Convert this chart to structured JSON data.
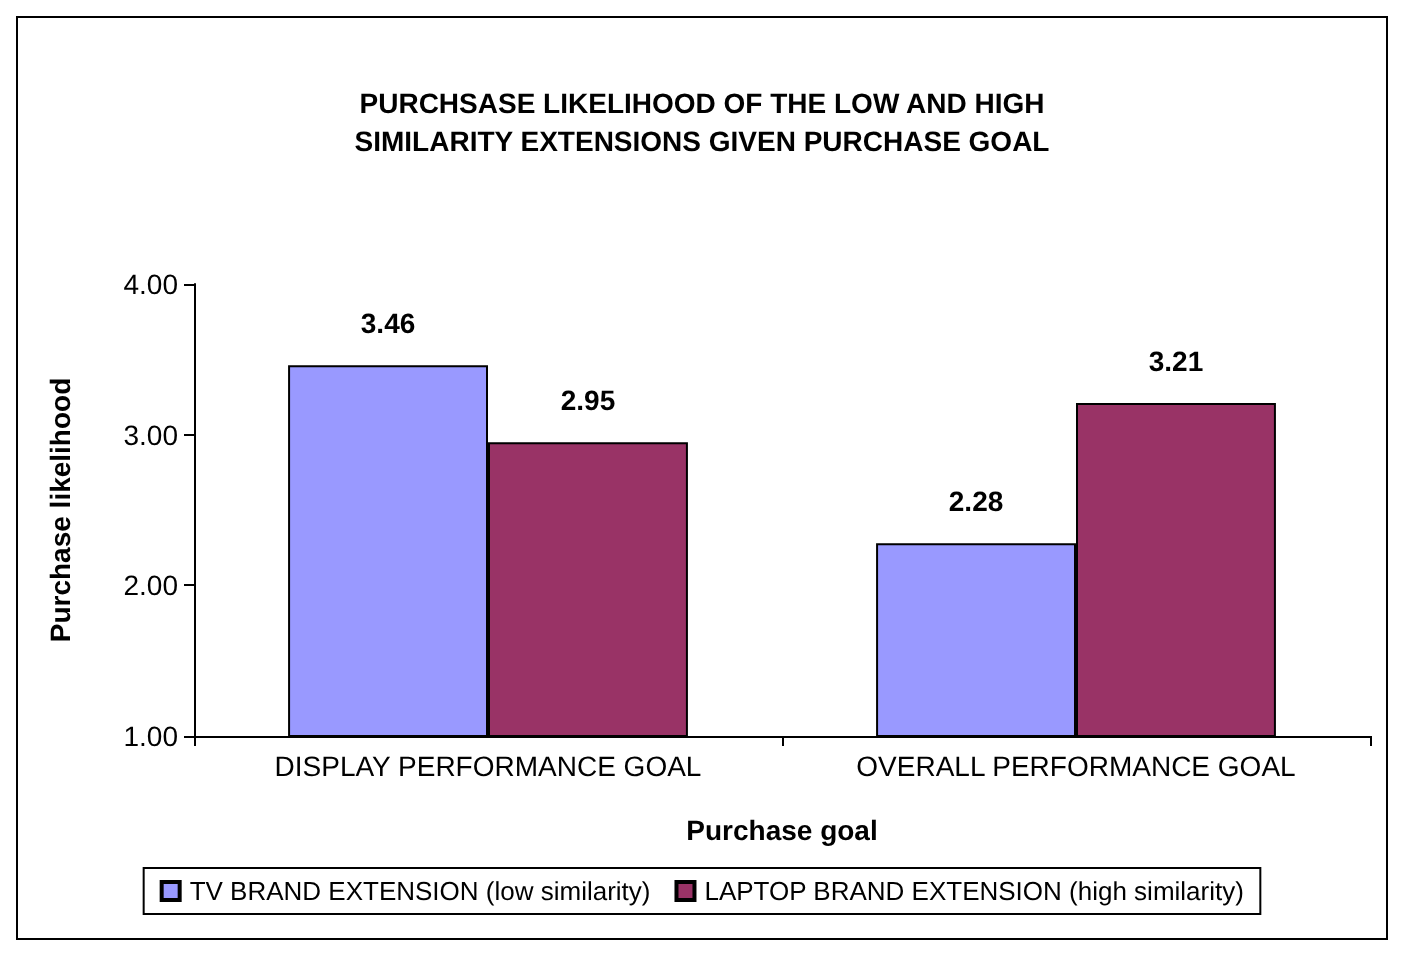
{
  "chart_data": {
    "type": "bar",
    "title": "PURCHSASE LIKELIHOOD OF THE LOW AND HIGH\nSIMILARITY EXTENSIONS GIVEN PURCHASE GOAL",
    "xlabel": "Purchase goal",
    "ylabel": "Purchase likelihood",
    "categories": [
      "DISPLAY PERFORMANCE GOAL",
      "OVERALL PERFORMANCE GOAL"
    ],
    "series": [
      {
        "name": "TV BRAND EXTENSION (low similarity)",
        "color": "#9999ff",
        "values": [
          3.46,
          2.28
        ]
      },
      {
        "name": "LAPTOP BRAND EXTENSION (high similarity)",
        "color": "#993366",
        "values": [
          2.95,
          3.21
        ]
      }
    ],
    "ylim": [
      1,
      4
    ],
    "yticks": [
      {
        "value": 1,
        "label": "1.00"
      },
      {
        "value": 2,
        "label": "2.00"
      },
      {
        "value": 3,
        "label": "3.00"
      },
      {
        "value": 4,
        "label": "4.00"
      }
    ],
    "data_labels": true,
    "grid": false,
    "legend": "bottom"
  }
}
